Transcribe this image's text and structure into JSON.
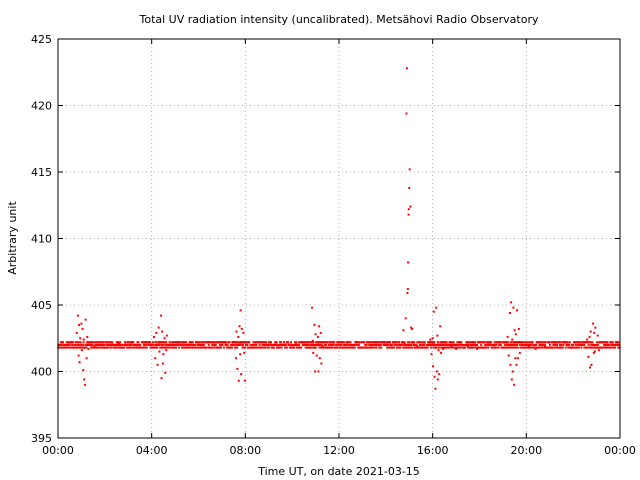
{
  "chart_data": {
    "type": "scatter",
    "title": "Total UV radiation intensity (uncalibrated). Metsähovi Radio Observatory",
    "xlabel": "Time UT, on date 2021-03-15",
    "ylabel": "Arbitrary unit",
    "xlim_hours": [
      0,
      24
    ],
    "ylim": [
      395,
      425
    ],
    "x_ticks": [
      {
        "hour": 0,
        "label": "00:00"
      },
      {
        "hour": 4,
        "label": "04:00"
      },
      {
        "hour": 8,
        "label": "08:00"
      },
      {
        "hour": 12,
        "label": "12:00"
      },
      {
        "hour": 16,
        "label": "16:00"
      },
      {
        "hour": 20,
        "label": "20:00"
      },
      {
        "hour": 24,
        "label": "00:00"
      }
    ],
    "y_ticks": [
      395,
      400,
      405,
      410,
      415,
      420,
      425
    ],
    "grid": true,
    "marker_color": "#ff0000",
    "baseline": 402,
    "points": [
      [
        0.8,
        402.9
      ],
      [
        0.85,
        404.2
      ],
      [
        0.88,
        401.2
      ],
      [
        0.9,
        403.5
      ],
      [
        0.92,
        400.7
      ],
      [
        0.95,
        402.5
      ],
      [
        1.0,
        403.6
      ],
      [
        1.02,
        401.6
      ],
      [
        1.05,
        403.2
      ],
      [
        1.08,
        400.1
      ],
      [
        1.1,
        402.4
      ],
      [
        1.12,
        399.4
      ],
      [
        1.15,
        399.0
      ],
      [
        1.18,
        403.9
      ],
      [
        1.22,
        401.0
      ],
      [
        1.25,
        402.6
      ],
      [
        1.3,
        401.7
      ],
      [
        1.4,
        401.8
      ],
      [
        1.55,
        401.9
      ],
      [
        1.7,
        401.8
      ],
      [
        2.6,
        402.1
      ],
      [
        4.1,
        402.6
      ],
      [
        4.15,
        401.0
      ],
      [
        4.2,
        402.9
      ],
      [
        4.25,
        400.5
      ],
      [
        4.3,
        403.3
      ],
      [
        4.33,
        401.5
      ],
      [
        4.36,
        402.2
      ],
      [
        4.4,
        404.2
      ],
      [
        4.42,
        399.5
      ],
      [
        4.45,
        403.0
      ],
      [
        4.48,
        400.6
      ],
      [
        4.5,
        401.3
      ],
      [
        4.55,
        402.5
      ],
      [
        4.58,
        399.9
      ],
      [
        4.62,
        401.6
      ],
      [
        4.65,
        402.7
      ],
      [
        7.55,
        402.2
      ],
      [
        7.6,
        401.0
      ],
      [
        7.62,
        403.0
      ],
      [
        7.66,
        400.2
      ],
      [
        7.7,
        402.6
      ],
      [
        7.72,
        399.3
      ],
      [
        7.75,
        403.4
      ],
      [
        7.78,
        401.3
      ],
      [
        7.8,
        404.6
      ],
      [
        7.82,
        399.8
      ],
      [
        7.85,
        403.2
      ],
      [
        7.88,
        401.8
      ],
      [
        7.92,
        402.9
      ],
      [
        7.95,
        401.4
      ],
      [
        7.98,
        399.3
      ],
      [
        10.85,
        404.8
      ],
      [
        10.88,
        402.3
      ],
      [
        10.9,
        401.4
      ],
      [
        10.95,
        403.5
      ],
      [
        10.98,
        400.0
      ],
      [
        11.0,
        402.8
      ],
      [
        11.05,
        401.2
      ],
      [
        11.1,
        402.6
      ],
      [
        11.12,
        400.0
      ],
      [
        11.15,
        403.4
      ],
      [
        11.18,
        401.0
      ],
      [
        11.22,
        402.9
      ],
      [
        11.25,
        400.6
      ],
      [
        11.3,
        401.9
      ],
      [
        14.75,
        403.1
      ],
      [
        14.8,
        402.1
      ],
      [
        14.85,
        404.0
      ],
      [
        14.88,
        419.4
      ],
      [
        14.9,
        422.8
      ],
      [
        14.92,
        405.9
      ],
      [
        14.94,
        406.2
      ],
      [
        14.95,
        408.2
      ],
      [
        14.97,
        411.8
      ],
      [
        14.98,
        412.2
      ],
      [
        15.0,
        413.8
      ],
      [
        15.02,
        415.2
      ],
      [
        15.05,
        412.4
      ],
      [
        15.08,
        403.3
      ],
      [
        15.12,
        403.2
      ],
      [
        15.2,
        402.0
      ],
      [
        15.35,
        401.9
      ],
      [
        15.5,
        401.8
      ],
      [
        15.9,
        402.4
      ],
      [
        15.95,
        401.3
      ],
      [
        16.0,
        402.5
      ],
      [
        16.02,
        400.4
      ],
      [
        16.05,
        404.5
      ],
      [
        16.08,
        399.6
      ],
      [
        16.1,
        402.0
      ],
      [
        16.12,
        398.7
      ],
      [
        16.15,
        404.8
      ],
      [
        16.18,
        400.0
      ],
      [
        16.2,
        402.7
      ],
      [
        16.22,
        399.4
      ],
      [
        16.25,
        401.6
      ],
      [
        16.28,
        399.8
      ],
      [
        16.32,
        403.4
      ],
      [
        16.36,
        401.4
      ],
      [
        16.4,
        402.2
      ],
      [
        16.45,
        401.7
      ],
      [
        16.6,
        401.8
      ],
      [
        16.8,
        401.9
      ],
      [
        17.0,
        401.7
      ],
      [
        17.5,
        401.9
      ],
      [
        17.7,
        401.8
      ],
      [
        17.9,
        401.7
      ],
      [
        19.2,
        402.6
      ],
      [
        19.25,
        401.2
      ],
      [
        19.3,
        404.4
      ],
      [
        19.32,
        400.5
      ],
      [
        19.35,
        405.2
      ],
      [
        19.38,
        399.4
      ],
      [
        19.4,
        402.4
      ],
      [
        19.42,
        400.0
      ],
      [
        19.45,
        404.8
      ],
      [
        19.48,
        399.0
      ],
      [
        19.5,
        403.1
      ],
      [
        19.53,
        401.0
      ],
      [
        19.55,
        402.8
      ],
      [
        19.58,
        400.5
      ],
      [
        19.6,
        404.6
      ],
      [
        19.64,
        401.0
      ],
      [
        19.68,
        403.2
      ],
      [
        19.72,
        401.4
      ],
      [
        19.8,
        401.8
      ],
      [
        20.1,
        401.9
      ],
      [
        20.4,
        401.7
      ],
      [
        20.8,
        401.9
      ],
      [
        21.4,
        401.8
      ],
      [
        22.6,
        402.4
      ],
      [
        22.65,
        401.1
      ],
      [
        22.7,
        402.6
      ],
      [
        22.72,
        400.3
      ],
      [
        22.75,
        403.0
      ],
      [
        22.78,
        400.5
      ],
      [
        22.82,
        402.2
      ],
      [
        22.85,
        403.6
      ],
      [
        22.88,
        401.4
      ],
      [
        22.9,
        402.9
      ],
      [
        22.93,
        401.5
      ],
      [
        22.95,
        403.3
      ],
      [
        22.98,
        401.8
      ],
      [
        23.05,
        402.7
      ],
      [
        23.1,
        401.6
      ]
    ]
  }
}
